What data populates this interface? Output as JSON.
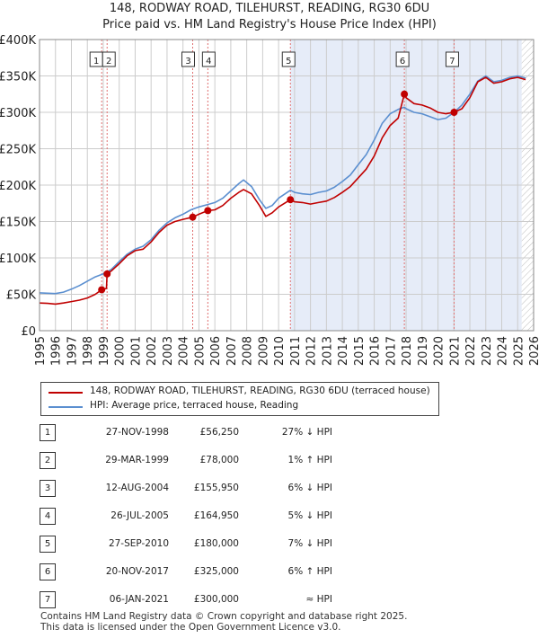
{
  "title_line1": "148, RODWAY ROAD, TILEHURST, READING, RG30 6DU",
  "title_line2": "Price paid vs. HM Land Registry's House Price Index (HPI)",
  "colors": {
    "price_line": "#c00000",
    "hpi_line": "#5b8fd0",
    "shade": "#e6ecf8",
    "grid": "#cccccc",
    "marker_line": "#e07070"
  },
  "chart_data": {
    "type": "line",
    "x_range": [
      1995,
      2026
    ],
    "ylim": [
      0,
      400000
    ],
    "y_ticks": [
      {
        "value": 0,
        "label": "£0"
      },
      {
        "value": 50000,
        "label": "£50K"
      },
      {
        "value": 100000,
        "label": "£100K"
      },
      {
        "value": 150000,
        "label": "£150K"
      },
      {
        "value": 200000,
        "label": "£200K"
      },
      {
        "value": 250000,
        "label": "£250K"
      },
      {
        "value": 300000,
        "label": "£300K"
      },
      {
        "value": 350000,
        "label": "£350K"
      },
      {
        "value": 400000,
        "label": "£400K"
      }
    ],
    "x_ticks": [
      1995,
      1996,
      1997,
      1998,
      1999,
      2000,
      2001,
      2002,
      2003,
      2004,
      2005,
      2006,
      2007,
      2008,
      2009,
      2010,
      2011,
      2012,
      2013,
      2014,
      2015,
      2016,
      2017,
      2018,
      2019,
      2020,
      2021,
      2022,
      2023,
      2024,
      2025,
      2026
    ],
    "shaded_region": [
      2010.74,
      2025.25
    ],
    "hatch_after": 2025.25,
    "series": [
      {
        "name": "148, RODWAY ROAD, TILEHURST, READING, RG30 6DU (terraced house)",
        "points": [
          [
            1995.0,
            38000
          ],
          [
            1995.5,
            37500
          ],
          [
            1996.0,
            36500
          ],
          [
            1996.5,
            38000
          ],
          [
            1997.0,
            40000
          ],
          [
            1997.5,
            42000
          ],
          [
            1998.0,
            45000
          ],
          [
            1998.5,
            50000
          ],
          [
            1998.9,
            56250
          ],
          [
            1999.0,
            57000
          ],
          [
            1999.2,
            58000
          ],
          [
            1999.24,
            78000
          ],
          [
            1999.5,
            82000
          ],
          [
            2000.0,
            92000
          ],
          [
            2000.5,
            103000
          ],
          [
            2001.0,
            110000
          ],
          [
            2001.5,
            112000
          ],
          [
            2002.0,
            122000
          ],
          [
            2002.5,
            135000
          ],
          [
            2003.0,
            145000
          ],
          [
            2003.5,
            150000
          ],
          [
            2004.0,
            153000
          ],
          [
            2004.61,
            155950
          ],
          [
            2005.0,
            160000
          ],
          [
            2005.56,
            164950
          ],
          [
            2006.0,
            166000
          ],
          [
            2006.5,
            172000
          ],
          [
            2007.0,
            182000
          ],
          [
            2007.5,
            190000
          ],
          [
            2007.8,
            194000
          ],
          [
            2008.3,
            188000
          ],
          [
            2008.8,
            172000
          ],
          [
            2009.2,
            157000
          ],
          [
            2009.6,
            162000
          ],
          [
            2010.0,
            170000
          ],
          [
            2010.74,
            180000
          ],
          [
            2011.0,
            177000
          ],
          [
            2011.5,
            176000
          ],
          [
            2012.0,
            174000
          ],
          [
            2012.5,
            176000
          ],
          [
            2013.0,
            178000
          ],
          [
            2013.5,
            183000
          ],
          [
            2014.0,
            190000
          ],
          [
            2014.5,
            198000
          ],
          [
            2015.0,
            210000
          ],
          [
            2015.5,
            222000
          ],
          [
            2016.0,
            240000
          ],
          [
            2016.5,
            265000
          ],
          [
            2017.0,
            282000
          ],
          [
            2017.5,
            292000
          ],
          [
            2017.89,
            325000
          ],
          [
            2018.0,
            320000
          ],
          [
            2018.5,
            312000
          ],
          [
            2019.0,
            310000
          ],
          [
            2019.5,
            306000
          ],
          [
            2020.0,
            300000
          ],
          [
            2020.5,
            298000
          ],
          [
            2021.01,
            300000
          ],
          [
            2021.5,
            305000
          ],
          [
            2022.0,
            320000
          ],
          [
            2022.5,
            342000
          ],
          [
            2023.0,
            348000
          ],
          [
            2023.5,
            340000
          ],
          [
            2024.0,
            342000
          ],
          [
            2024.5,
            346000
          ],
          [
            2025.0,
            348000
          ],
          [
            2025.5,
            345000
          ]
        ]
      },
      {
        "name": "HPI: Average price, terraced house, Reading",
        "points": [
          [
            1995.0,
            52000
          ],
          [
            1995.5,
            51500
          ],
          [
            1996.0,
            51000
          ],
          [
            1996.5,
            53000
          ],
          [
            1997.0,
            57000
          ],
          [
            1997.5,
            62000
          ],
          [
            1998.0,
            68000
          ],
          [
            1998.5,
            74000
          ],
          [
            1999.0,
            78000
          ],
          [
            1999.5,
            84000
          ],
          [
            2000.0,
            95000
          ],
          [
            2000.5,
            105000
          ],
          [
            2001.0,
            112000
          ],
          [
            2001.5,
            116000
          ],
          [
            2002.0,
            125000
          ],
          [
            2002.5,
            138000
          ],
          [
            2003.0,
            148000
          ],
          [
            2003.5,
            155000
          ],
          [
            2004.0,
            160000
          ],
          [
            2004.5,
            166000
          ],
          [
            2005.0,
            170000
          ],
          [
            2005.5,
            173000
          ],
          [
            2006.0,
            176000
          ],
          [
            2006.5,
            182000
          ],
          [
            2007.0,
            192000
          ],
          [
            2007.5,
            202000
          ],
          [
            2007.8,
            207000
          ],
          [
            2008.3,
            198000
          ],
          [
            2008.8,
            180000
          ],
          [
            2009.2,
            168000
          ],
          [
            2009.6,
            172000
          ],
          [
            2010.0,
            182000
          ],
          [
            2010.74,
            193000
          ],
          [
            2011.0,
            190000
          ],
          [
            2011.5,
            188000
          ],
          [
            2012.0,
            187000
          ],
          [
            2012.5,
            190000
          ],
          [
            2013.0,
            192000
          ],
          [
            2013.5,
            197000
          ],
          [
            2014.0,
            205000
          ],
          [
            2014.5,
            214000
          ],
          [
            2015.0,
            228000
          ],
          [
            2015.5,
            242000
          ],
          [
            2016.0,
            262000
          ],
          [
            2016.5,
            285000
          ],
          [
            2017.0,
            298000
          ],
          [
            2017.5,
            304000
          ],
          [
            2017.89,
            307000
          ],
          [
            2018.0,
            305000
          ],
          [
            2018.5,
            300000
          ],
          [
            2019.0,
            298000
          ],
          [
            2019.5,
            294000
          ],
          [
            2020.0,
            290000
          ],
          [
            2020.5,
            292000
          ],
          [
            2021.01,
            300000
          ],
          [
            2021.5,
            310000
          ],
          [
            2022.0,
            325000
          ],
          [
            2022.5,
            343000
          ],
          [
            2023.0,
            350000
          ],
          [
            2023.5,
            342000
          ],
          [
            2024.0,
            344000
          ],
          [
            2024.5,
            348000
          ],
          [
            2025.0,
            350000
          ],
          [
            2025.5,
            347000
          ]
        ]
      }
    ],
    "transactions": [
      {
        "label": "1",
        "x": 1998.9,
        "price": 56250
      },
      {
        "label": "2",
        "x": 1999.24,
        "price": 78000
      },
      {
        "label": "3",
        "x": 2004.61,
        "price": 155950
      },
      {
        "label": "4",
        "x": 2005.56,
        "price": 164950
      },
      {
        "label": "5",
        "x": 2010.74,
        "price": 180000
      },
      {
        "label": "6",
        "x": 2017.89,
        "price": 325000
      },
      {
        "label": "7",
        "x": 2021.01,
        "price": 300000
      }
    ]
  },
  "legend": {
    "price_label": "148, RODWAY ROAD, TILEHURST, READING, RG30 6DU (terraced house)",
    "hpi_label": "HPI: Average price, terraced house, Reading"
  },
  "table": [
    {
      "num": "1",
      "date": "27-NOV-1998",
      "price": "£56,250",
      "rel": "27% ↓ HPI"
    },
    {
      "num": "2",
      "date": "29-MAR-1999",
      "price": "£78,000",
      "rel": "1% ↑ HPI"
    },
    {
      "num": "3",
      "date": "12-AUG-2004",
      "price": "£155,950",
      "rel": "6% ↓ HPI"
    },
    {
      "num": "4",
      "date": "26-JUL-2005",
      "price": "£164,950",
      "rel": "5% ↓ HPI"
    },
    {
      "num": "5",
      "date": "27-SEP-2010",
      "price": "£180,000",
      "rel": "7% ↓ HPI"
    },
    {
      "num": "6",
      "date": "20-NOV-2017",
      "price": "£325,000",
      "rel": "6% ↑ HPI"
    },
    {
      "num": "7",
      "date": "06-JAN-2021",
      "price": "£300,000",
      "rel": "≈ HPI"
    }
  ],
  "footer": {
    "line1": "Contains HM Land Registry data © Crown copyright and database right 2025.",
    "line2": "This data is licensed under the Open Government Licence v3.0."
  }
}
